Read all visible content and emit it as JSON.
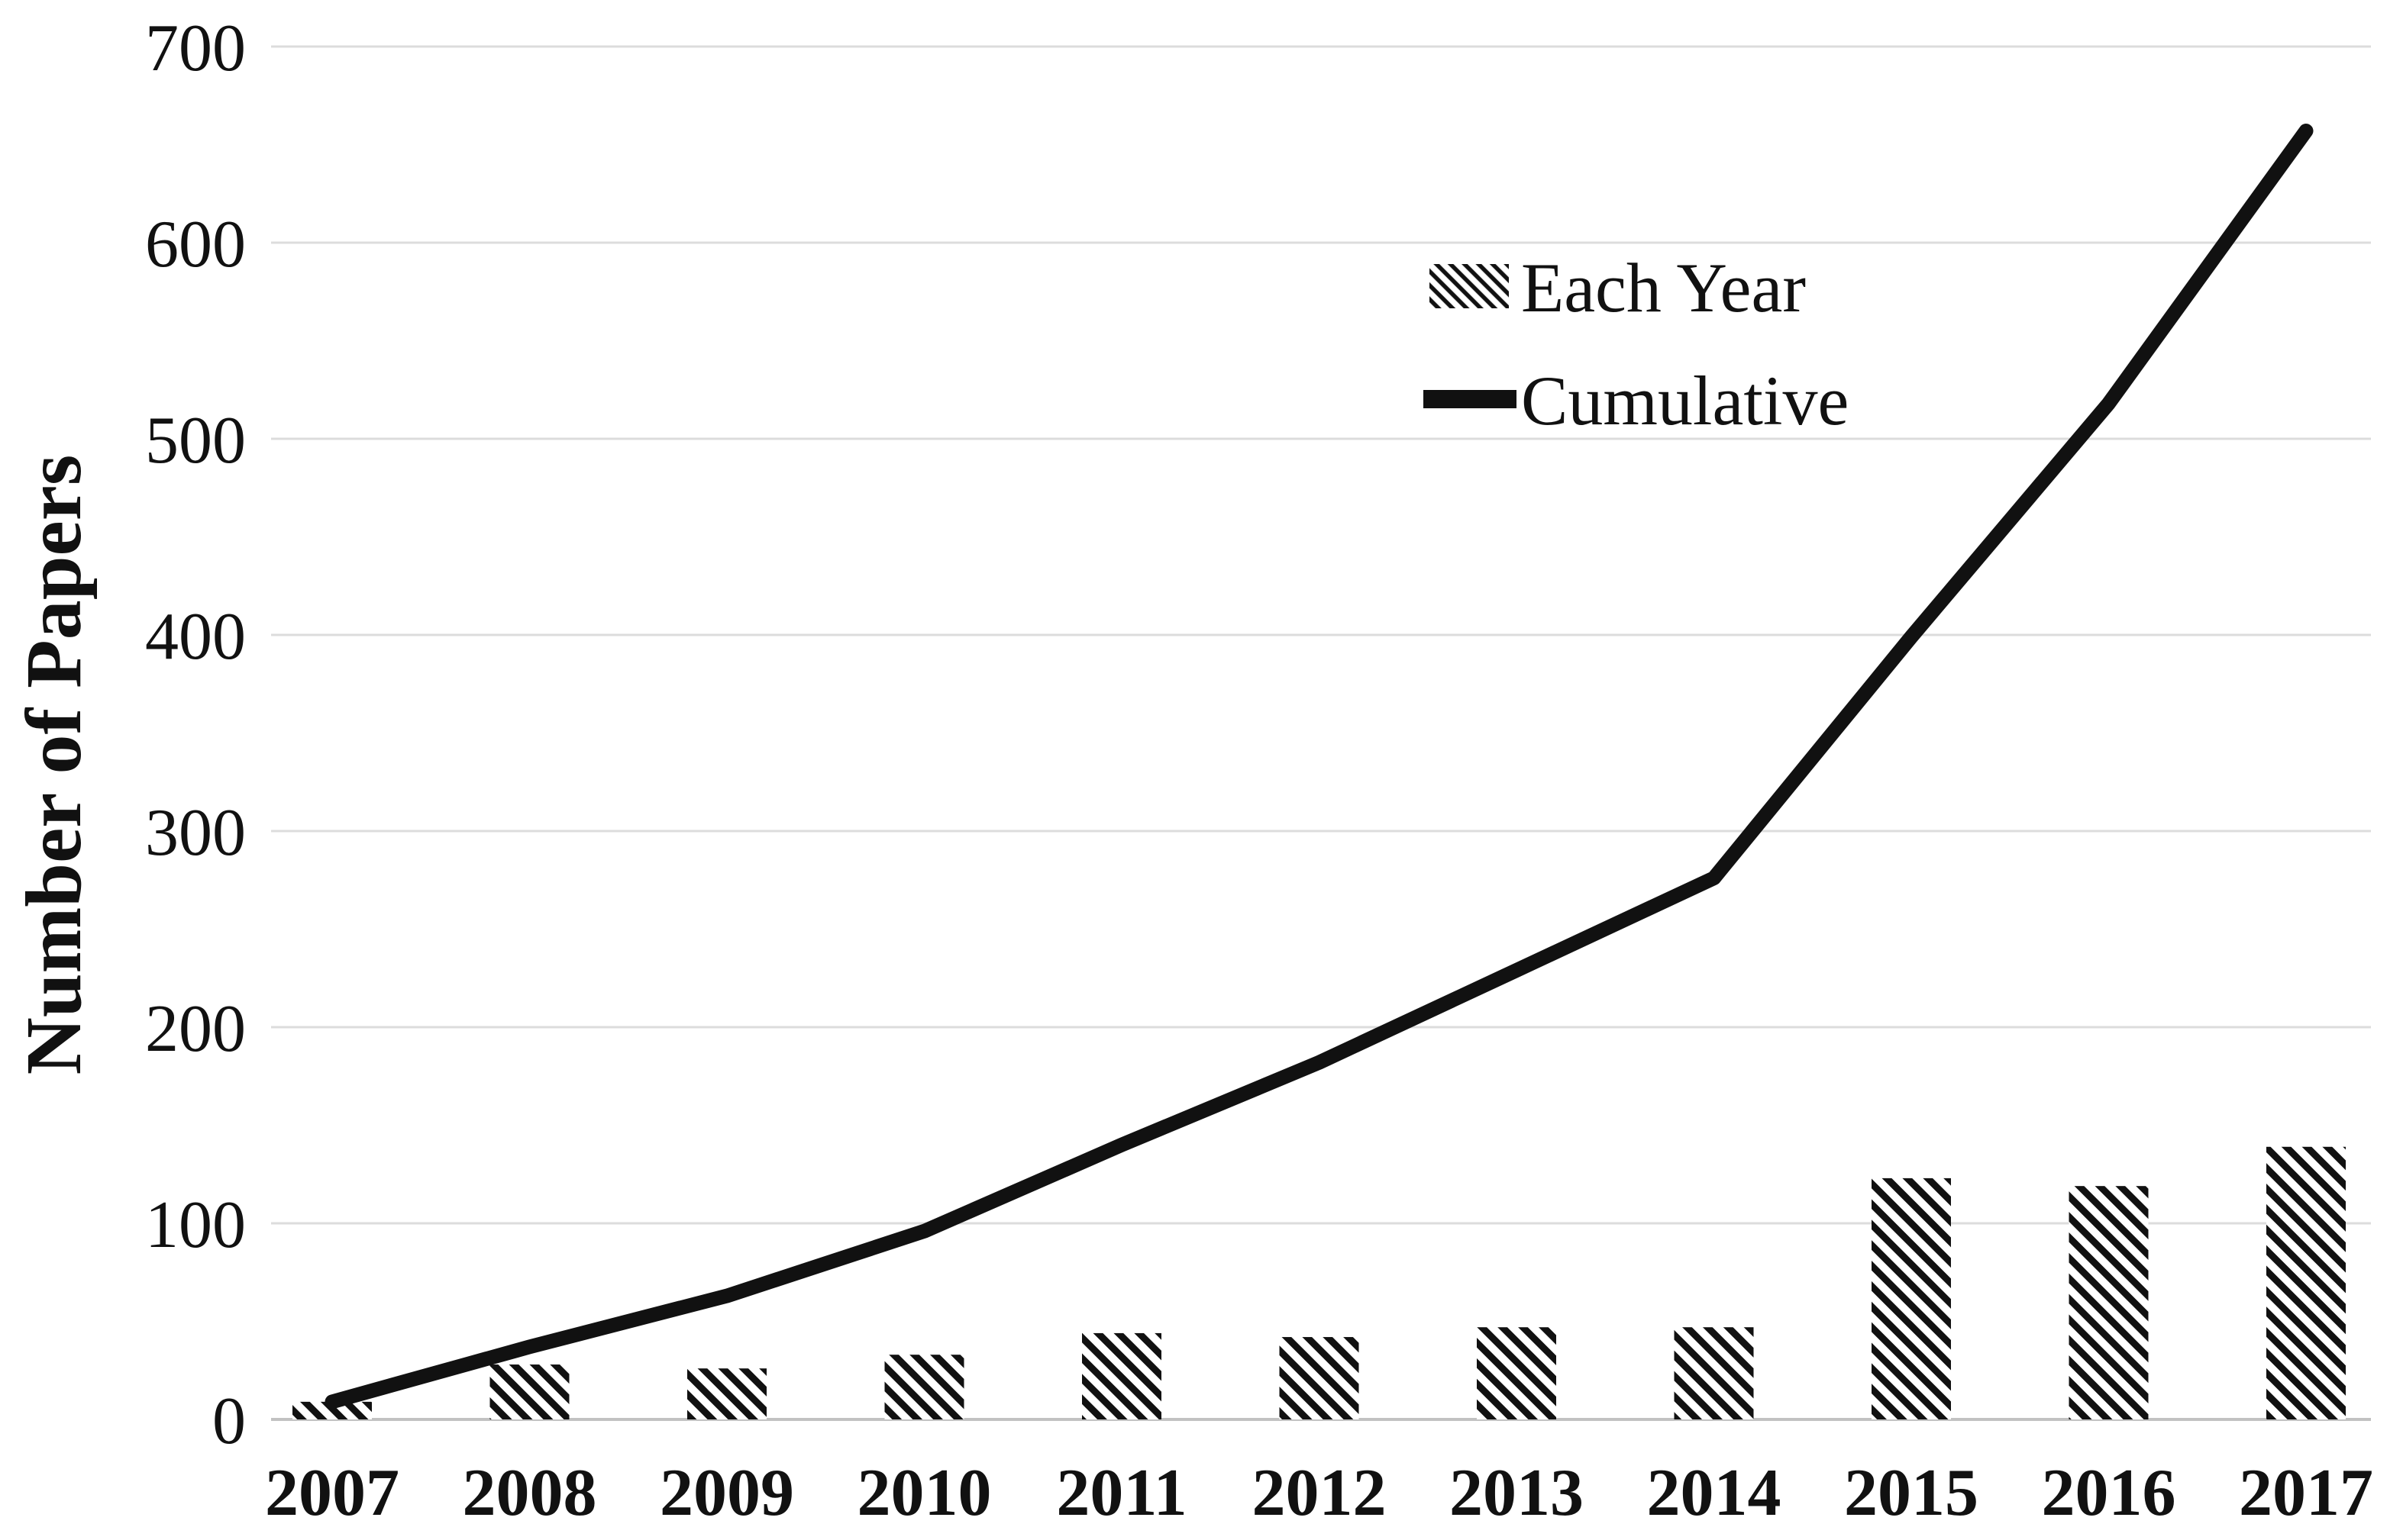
{
  "chart_data": {
    "type": "bar",
    "combo": "bar+line",
    "title": "",
    "xlabel": "",
    "ylabel": "Number of Papers",
    "categories": [
      "2007",
      "2008",
      "2009",
      "2010",
      "2011",
      "2012",
      "2013",
      "2014",
      "2015",
      "2016",
      "2017"
    ],
    "series": [
      {
        "name": "Each Year",
        "type": "bar",
        "style": "black-diagonal-hatch",
        "values": [
          9,
          28,
          26,
          33,
          44,
          42,
          47,
          47,
          123,
          119,
          139
        ]
      },
      {
        "name": "Cumulative",
        "type": "line",
        "style": "thick-black-line",
        "values": [
          9,
          37,
          63,
          96,
          140,
          182,
          229,
          276,
          399,
          518,
          657
        ]
      }
    ],
    "ylim": [
      0,
      700
    ],
    "yticks": [
      0,
      100,
      200,
      300,
      400,
      500,
      600,
      700
    ],
    "grid": true,
    "legend_position": "inside-upper-right",
    "colors": {
      "ink": "#111111",
      "grid": "#dcdcdc",
      "baseline": "#c2c2c2",
      "background": "#ffffff"
    }
  }
}
